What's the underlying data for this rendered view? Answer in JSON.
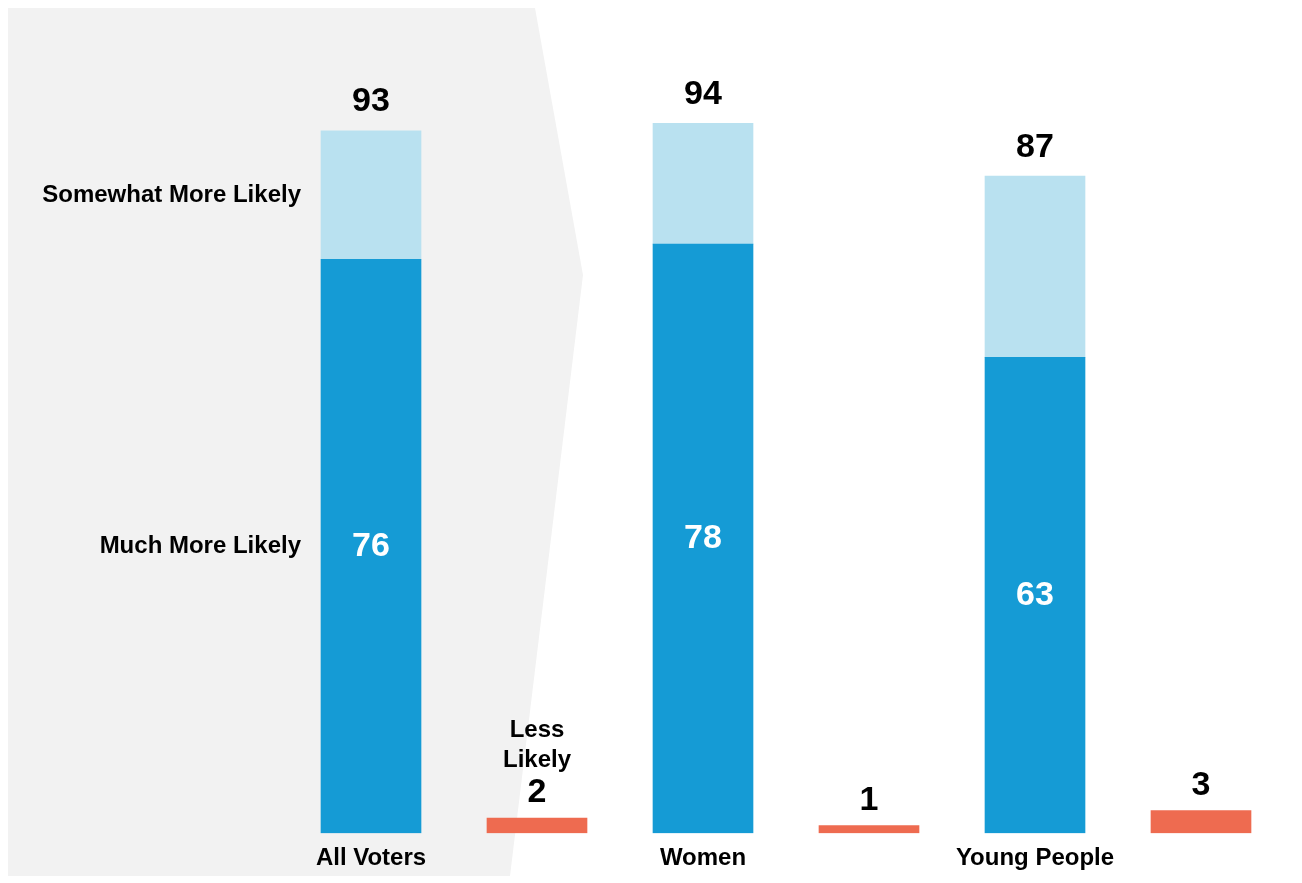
{
  "chart_data": {
    "type": "bar",
    "stacked": true,
    "categories": [
      "All Voters",
      null,
      "Women",
      null,
      "Young People",
      null
    ],
    "series": [
      {
        "name": "Much More Likely",
        "color": "#159bd5",
        "values": [
          76,
          null,
          78,
          null,
          63,
          null
        ],
        "value_labels": [
          "76",
          null,
          "78",
          null,
          "63",
          null
        ]
      },
      {
        "name": "Somewhat More Likely",
        "color": "#b9e1f0",
        "values": [
          17,
          null,
          16,
          null,
          24,
          null
        ]
      },
      {
        "name": "Less Likely",
        "color": "#ee6b50",
        "values": [
          null,
          2,
          null,
          1,
          null,
          3
        ],
        "value_labels": [
          null,
          "2",
          null,
          "1",
          null,
          "3"
        ]
      }
    ],
    "totals": [
      "93",
      null,
      "94",
      null,
      "87",
      null
    ],
    "legend": false
  }
}
